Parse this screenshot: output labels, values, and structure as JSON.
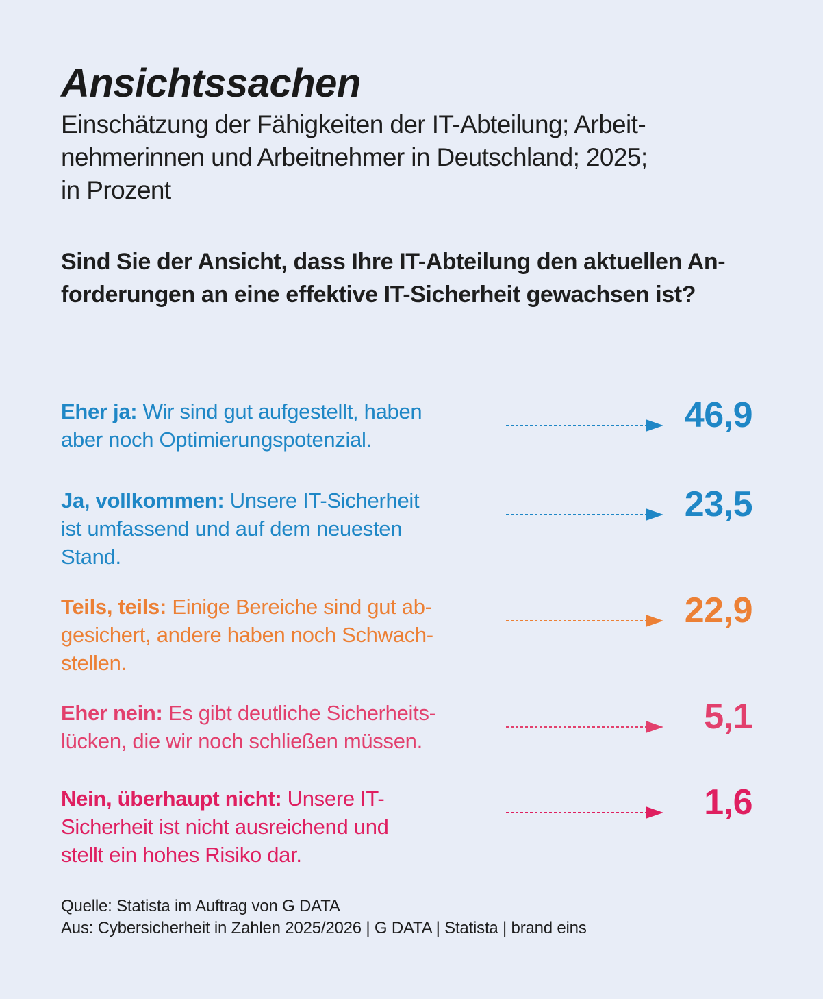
{
  "title": "Ansichtssachen",
  "subtitle": "Einschätzung der Fähigkeiten der IT-Abteilung; Arbeit-\nnehmerinnen und Arbeitnehmer in Deutschland; 2025;\nin Prozent",
  "question": "Sind Sie der Ansicht, dass Ihre IT-Abteilung den aktuellen An-\nforderungen an eine effektive IT-Sicherheit gewachsen ist?",
  "chart_data": {
    "type": "table",
    "unit": "Prozent",
    "rows": [
      {
        "label": "Eher ja:",
        "description": " Wir sind gut aufgestellt, haben\naber noch Optimierungspotenzial.",
        "value": 46.9,
        "display": "46,9",
        "color": "#1f87c6"
      },
      {
        "label": "Ja, vollkommen:",
        "description": " Unsere IT-Sicherheit\nist umfassend und auf dem neuesten\nStand.",
        "value": 23.5,
        "display": "23,5",
        "color": "#1f87c6"
      },
      {
        "label": "Teils, teils:",
        "description": " Einige Bereiche sind gut ab-\ngesichert, andere haben noch Schwach-\nstellen.",
        "value": 22.9,
        "display": "22,9",
        "color": "#ec8035"
      },
      {
        "label": "Eher nein:",
        "description": " Es gibt deutliche Sicherheits-\nlücken, die wir noch schließen müssen.",
        "value": 5.1,
        "display": "5,1",
        "color": "#e2406d"
      },
      {
        "label": "Nein, überhaupt nicht:",
        "description": " Unsere IT-\nSicherheit ist nicht ausreichend und\nstellt ein hohes Risiko dar.",
        "value": 1.6,
        "display": "1,6",
        "color": "#df1f60"
      }
    ]
  },
  "source": {
    "line1": "Quelle: Statista im Auftrag von G DATA",
    "line2": "Aus: Cybersicherheit in Zahlen 2025/2026 | G DATA | Statista | brand eins"
  }
}
